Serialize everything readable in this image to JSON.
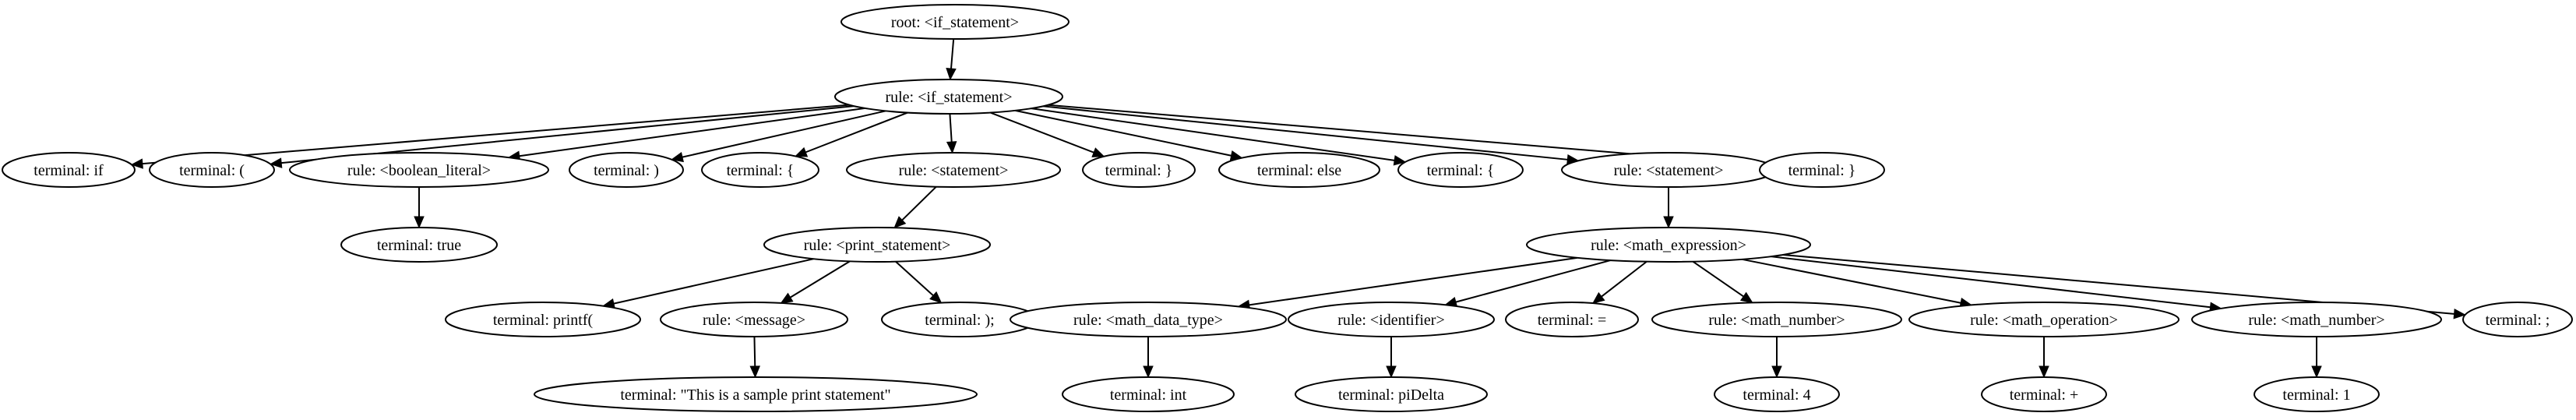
{
  "tree": {
    "root": "root: <if_statement>",
    "node_labels": [
      "rule: <if_statement>",
      "terminal: if",
      "terminal: (",
      "rule: <boolean_literal>",
      "terminal: )",
      "terminal: {",
      "rule: <statement>",
      "terminal: }",
      "terminal: else",
      "terminal: {",
      "rule: <statement>",
      "terminal: }",
      "terminal: true",
      "rule: <print_statement>",
      "rule: <math_expression>",
      "terminal: printf(",
      "rule: <message>",
      "terminal: );",
      "rule: <math_data_type>",
      "rule: <identifier>",
      "terminal: =",
      "rule: <math_number>",
      "rule: <math_operation>",
      "rule: <math_number>",
      "terminal: ;",
      "terminal: \"This is a sample print statement\"",
      "terminal: int",
      "terminal: piDelta",
      "terminal: 4",
      "terminal: +",
      "terminal: 1"
    ],
    "edges": [
      [
        "n0",
        "n1"
      ],
      [
        "n1",
        "n2"
      ],
      [
        "n1",
        "n3"
      ],
      [
        "n1",
        "n4"
      ],
      [
        "n1",
        "n5"
      ],
      [
        "n1",
        "n6"
      ],
      [
        "n1",
        "n7"
      ],
      [
        "n1",
        "n8"
      ],
      [
        "n1",
        "n9"
      ],
      [
        "n1",
        "n10"
      ],
      [
        "n1",
        "n11"
      ],
      [
        "n1",
        "n12"
      ],
      [
        "n4",
        "n13"
      ],
      [
        "n7",
        "n14"
      ],
      [
        "n11",
        "n15"
      ],
      [
        "n14",
        "n16"
      ],
      [
        "n14",
        "n17"
      ],
      [
        "n14",
        "n18"
      ],
      [
        "n15",
        "n19"
      ],
      [
        "n15",
        "n20"
      ],
      [
        "n15",
        "n21"
      ],
      [
        "n15",
        "n22"
      ],
      [
        "n15",
        "n23"
      ],
      [
        "n15",
        "n24"
      ],
      [
        "n15",
        "n25"
      ],
      [
        "n17",
        "n26"
      ],
      [
        "n19",
        "n27"
      ],
      [
        "n20",
        "n28"
      ],
      [
        "n22",
        "n29"
      ],
      [
        "n23",
        "n30"
      ],
      [
        "n24",
        "n31"
      ]
    ]
  }
}
